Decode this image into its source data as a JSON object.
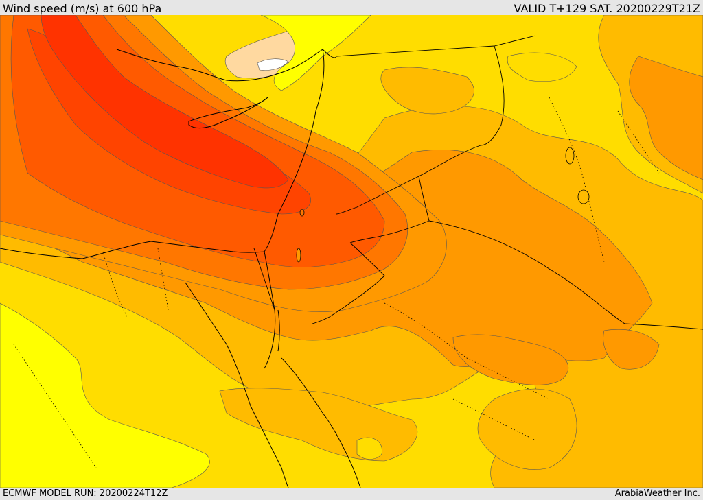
{
  "header": {
    "title": "Wind speed (m/s) at 600 hPa",
    "valid": "VALID T+129 SAT. 20200229T21Z"
  },
  "footer": {
    "model_run": "ECMWF MODEL RUN: 20200224T12Z",
    "credit": "ArabiaWeather Inc."
  },
  "colors": {
    "band_1": "#ffff00",
    "band_2": "#ffdd00",
    "band_3": "#ffbb00",
    "band_4": "#ff9900",
    "band_5": "#ff7700",
    "band_6": "#ff5a00",
    "band_7": "#ff4400",
    "band_8": "#ff3300",
    "calm": "#ffd9a0"
  }
}
